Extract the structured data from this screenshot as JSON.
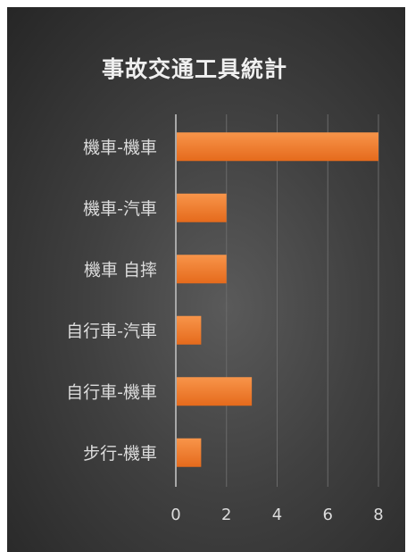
{
  "chart_data": {
    "type": "bar",
    "orientation": "horizontal",
    "title": "事故交通工具統計",
    "categories": [
      "機車-機車",
      "機車-汽車",
      "機車 自摔",
      "自行車-汽車",
      "自行車-機車",
      "步行-機車"
    ],
    "values": [
      8,
      2,
      2,
      1,
      3,
      1
    ],
    "xlim": [
      0,
      8
    ],
    "xticks": [
      0,
      2,
      4,
      6,
      8
    ],
    "grid": true,
    "legend": "none",
    "bar_color": "#f0782a",
    "background_color": "#3e3e3e"
  }
}
